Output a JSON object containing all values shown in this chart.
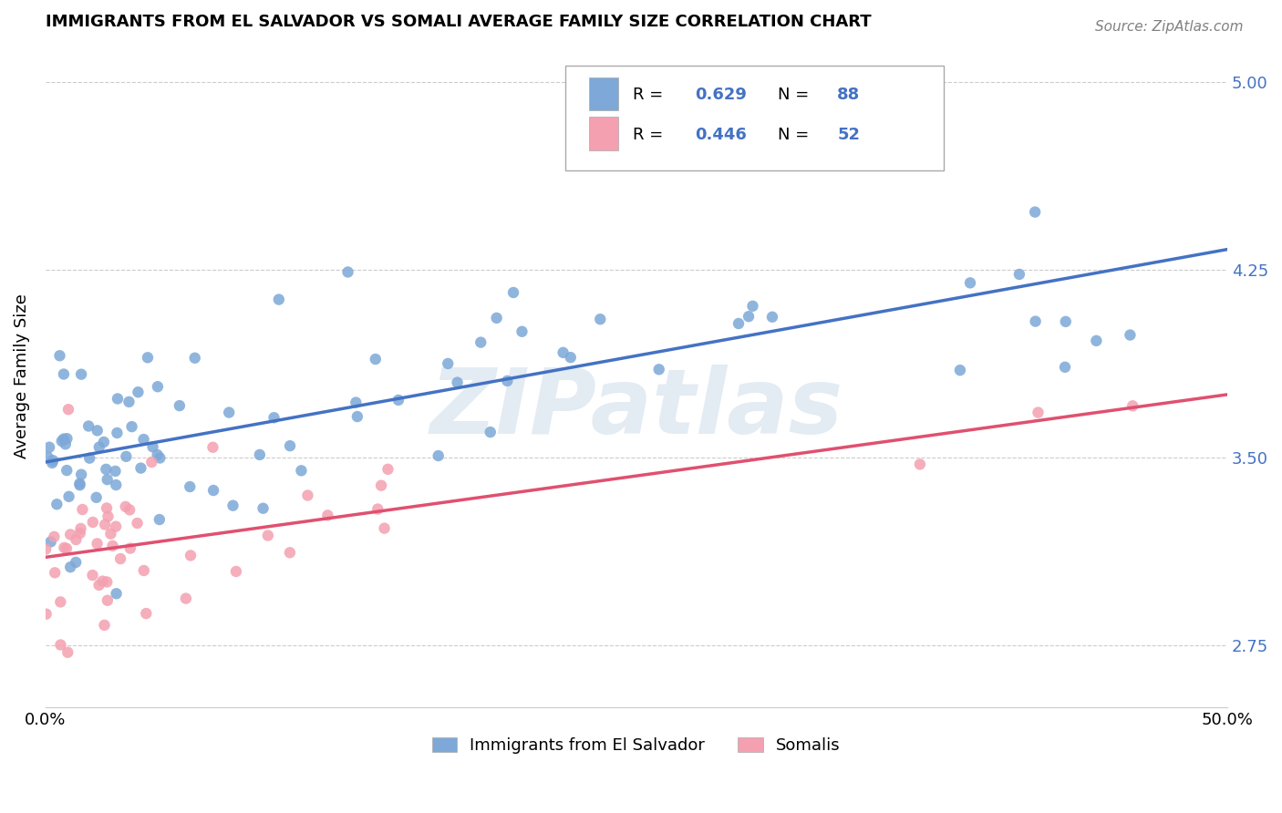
{
  "title": "IMMIGRANTS FROM EL SALVADOR VS SOMALI AVERAGE FAMILY SIZE CORRELATION CHART",
  "source": "Source: ZipAtlas.com",
  "ylabel": "Average Family Size",
  "xlim": [
    0.0,
    50.0
  ],
  "ylim": [
    2.5,
    5.15
  ],
  "yticks": [
    2.75,
    3.5,
    4.25,
    5.0
  ],
  "xticks": [
    0.0,
    10.0,
    20.0,
    30.0,
    40.0,
    50.0
  ],
  "xtick_labels": [
    "0.0%",
    "",
    "",
    "",
    "",
    "50.0%"
  ],
  "right_yaxis_color": "#4472c4",
  "grid_color": "#cccccc",
  "background_color": "#ffffff",
  "watermark_text": "ZIPatlas",
  "watermark_color": "#c8d8e8",
  "watermark_alpha": 0.5,
  "series": [
    {
      "label": "Immigrants from El Salvador",
      "R": 0.629,
      "N": 88,
      "color": "#7da8d8",
      "line_color": "#4472c4",
      "regression": {
        "x0": 0.0,
        "y0": 3.48,
        "x1": 50.0,
        "y1": 4.33
      }
    },
    {
      "label": "Somalis",
      "R": 0.446,
      "N": 52,
      "color": "#f4a0b0",
      "line_color": "#e05070",
      "regression": {
        "x0": 0.0,
        "y0": 3.1,
        "x1": 50.0,
        "y1": 3.75
      }
    }
  ]
}
